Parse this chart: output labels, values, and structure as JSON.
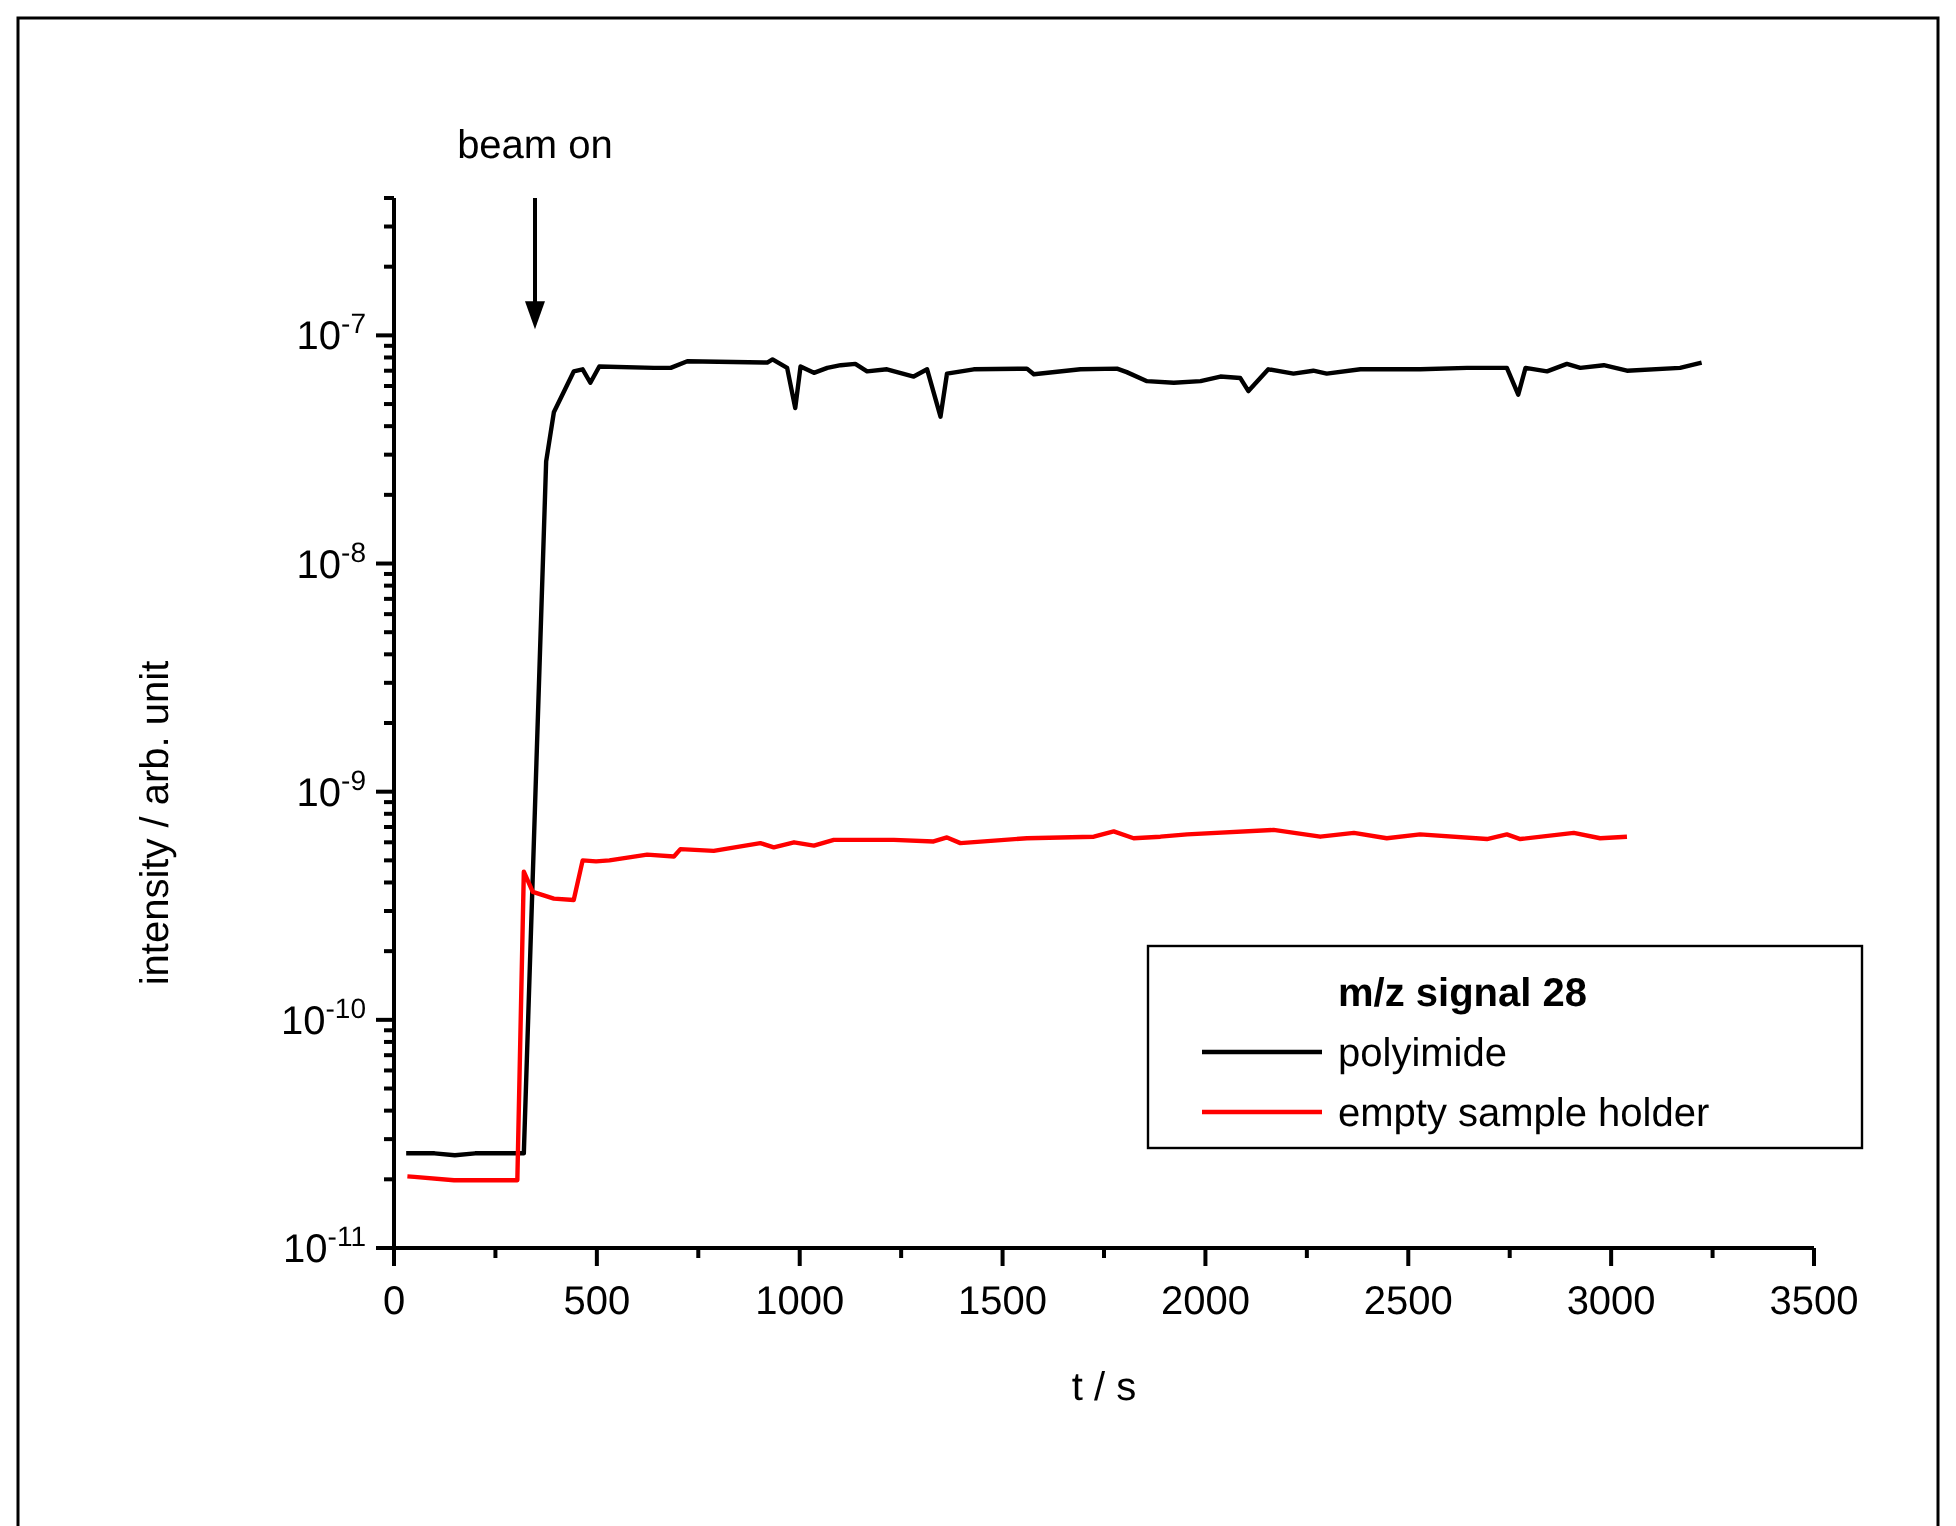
{
  "chart_data": {
    "type": "line",
    "xlabel": "t / s",
    "ylabel": "intensity / arb. unit",
    "legend_title": "m/z signal 28",
    "legend": "bottom right",
    "log": "y",
    "grid": false,
    "line_style": "solid",
    "marker": "none",
    "xlim": [
      0,
      3500
    ],
    "xticks": [
      0,
      {
        "value": 250,
        "label": null
      },
      500,
      {
        "value": 750,
        "label": null
      },
      1000,
      {
        "value": 1250,
        "label": null
      },
      1500,
      {
        "value": 1750,
        "label": null
      },
      2000,
      {
        "value": 2250,
        "label": null
      },
      2500,
      {
        "value": 2750,
        "label": null
      },
      3000,
      {
        "value": 3250,
        "label": null
      },
      3500
    ],
    "ylim": [
      1e-11,
      4e-07
    ],
    "yticks": [
      {
        "value": 1e-11,
        "label": "10$^{-11}$"
      },
      {
        "value": 2e-11,
        "label": null
      },
      {
        "value": 3e-11,
        "label": null
      },
      {
        "value": 4e-11,
        "label": null
      },
      {
        "value": 5e-11,
        "label": null
      },
      {
        "value": 6e-11,
        "label": null
      },
      {
        "value": 7e-11,
        "label": null
      },
      {
        "value": 8e-11,
        "label": null
      },
      {
        "value": 9e-11,
        "label": null
      },
      {
        "value": 1e-10,
        "label": "10$^{-10}$"
      },
      {
        "value": 2e-10,
        "label": null
      },
      {
        "value": 3e-10,
        "label": null
      },
      {
        "value": 4e-10,
        "label": null
      },
      {
        "value": 5e-10,
        "label": null
      },
      {
        "value": 6e-10,
        "label": null
      },
      {
        "value": 7e-10,
        "label": null
      },
      {
        "value": 8e-10,
        "label": null
      },
      {
        "value": 9e-10,
        "label": null
      },
      {
        "value": 1e-09,
        "label": "10$^{-9}$"
      },
      {
        "value": 2e-09,
        "label": null
      },
      {
        "value": 3e-09,
        "label": null
      },
      {
        "value": 4e-09,
        "label": null
      },
      {
        "value": 5e-09,
        "label": null
      },
      {
        "value": 6e-09,
        "label": null
      },
      {
        "value": 7e-09,
        "label": null
      },
      {
        "value": 8e-09,
        "label": null
      },
      {
        "value": 9e-09,
        "label": null
      },
      {
        "value": 1e-08,
        "label": "10$^{-8}$"
      },
      {
        "value": 2e-08,
        "label": null
      },
      {
        "value": 3e-08,
        "label": null
      },
      {
        "value": 4e-08,
        "label": null
      },
      {
        "value": 5e-08,
        "label": null
      },
      {
        "value": 6e-08,
        "label": null
      },
      {
        "value": 7e-08,
        "label": null
      },
      {
        "value": 8e-08,
        "label": null
      },
      {
        "value": 9e-08,
        "label": null
      },
      {
        "value": 1e-07,
        "label": "10$^{-7}$"
      },
      {
        "value": 2e-07,
        "label": null
      },
      {
        "value": 3e-07,
        "label": null
      },
      {
        "value": 4e-07,
        "label": null
      }
    ],
    "annotations": [
      "beam on"
    ],
    "series": [
      {
        "name": "polyimide",
        "color": "#000000",
        "x": [
          30,
          100,
          150,
          200,
          250,
          320,
          375,
          394,
          443,
          465,
          484,
          506,
          641,
          682,
          723,
          920,
          933,
          969,
          989,
          1002,
          1035,
          1068,
          1101,
          1137,
          1166,
          1215,
          1281,
          1314,
          1347,
          1363,
          1429,
          1560,
          1577,
          1692,
          1782,
          1806,
          1856,
          1922,
          1988,
          2037,
          2086,
          2106,
          2155,
          2217,
          2266,
          2299,
          2382,
          2530,
          2645,
          2743,
          2771,
          2789,
          2842,
          2891,
          2924,
          2982,
          3039,
          3170,
          3223
        ],
        "values": [
          2.6e-11,
          2.6e-11,
          2.55e-11,
          2.6e-11,
          2.6e-11,
          2.6e-11,
          2.8e-08,
          4.6e-08,
          6.95e-08,
          7.1e-08,
          6.2e-08,
          7.3e-08,
          7.2e-08,
          7.2e-08,
          7.7e-08,
          7.6e-08,
          7.85e-08,
          7.2e-08,
          4.8e-08,
          7.3e-08,
          6.85e-08,
          7.2e-08,
          7.4e-08,
          7.5e-08,
          6.95e-08,
          7.1e-08,
          6.6e-08,
          7.1e-08,
          4.4e-08,
          6.8e-08,
          7.1e-08,
          7.15e-08,
          6.75e-08,
          7.1e-08,
          7.15e-08,
          6.9e-08,
          6.3e-08,
          6.2e-08,
          6.3e-08,
          6.6e-08,
          6.5e-08,
          5.7e-08,
          7.1e-08,
          6.8e-08,
          7e-08,
          6.8e-08,
          7.1e-08,
          7.1e-08,
          7.2e-08,
          7.2e-08,
          5.5e-08,
          7.2e-08,
          6.95e-08,
          7.5e-08,
          7.2e-08,
          7.4e-08,
          7e-08,
          7.2e-08,
          7.6e-08
        ]
      },
      {
        "name": "empty sample holder",
        "color": "#ff0000",
        "x": [
          33,
          50,
          148,
          304,
          320,
          342,
          394,
          443,
          465,
          498,
          531,
          624,
          690,
          706,
          788,
          903,
          936,
          986,
          1035,
          1084,
          1232,
          1330,
          1363,
          1396,
          1560,
          1725,
          1774,
          1823,
          1889,
          1955,
          2168,
          2283,
          2366,
          2447,
          2529,
          2694,
          2743,
          2776,
          2908,
          2973,
          3039
        ],
        "values": [
          2.06e-11,
          2.05e-11,
          1.98e-11,
          1.98e-11,
          4.46e-10,
          3.64e-10,
          3.4e-10,
          3.35e-10,
          5e-10,
          4.95e-10,
          5e-10,
          5.3e-10,
          5.2e-10,
          5.6e-10,
          5.5e-10,
          5.95e-10,
          5.7e-10,
          6e-10,
          5.8e-10,
          6.15e-10,
          6.15e-10,
          6.05e-10,
          6.3e-10,
          5.95e-10,
          6.25e-10,
          6.35e-10,
          6.7e-10,
          6.25e-10,
          6.35e-10,
          6.5e-10,
          6.8e-10,
          6.35e-10,
          6.6e-10,
          6.25e-10,
          6.5e-10,
          6.2e-10,
          6.5e-10,
          6.2e-10,
          6.6e-10,
          6.25e-10,
          6.35e-10
        ]
      }
    ]
  }
}
